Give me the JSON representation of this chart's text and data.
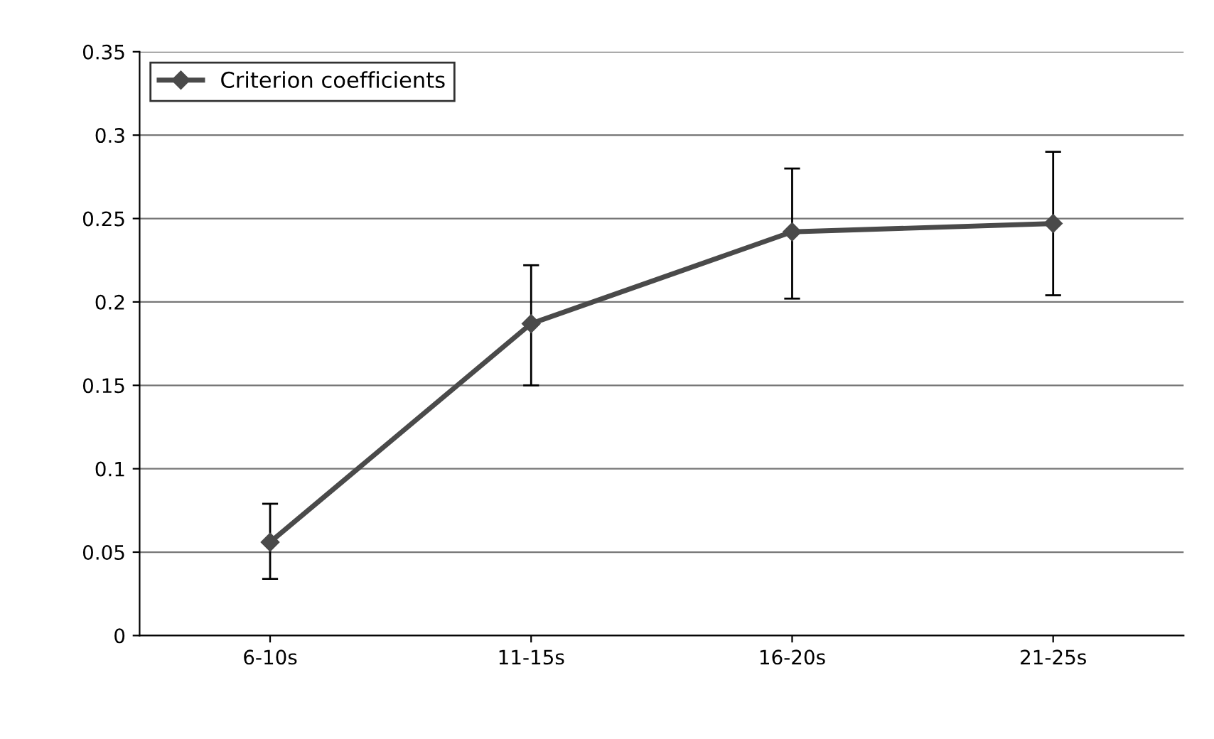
{
  "chart_data": {
    "type": "line",
    "categories": [
      "6-10s",
      "11-15s",
      "16-20s",
      "21-25s"
    ],
    "series": [
      {
        "name": "Criterion coefficients",
        "color": "#4a4a4a",
        "values": [
          0.056,
          0.187,
          0.242,
          0.247
        ],
        "errors": [
          [
            0.034,
            0.079
          ],
          [
            0.15,
            0.222
          ],
          [
            0.202,
            0.28
          ],
          [
            0.204,
            0.29
          ]
        ]
      }
    ],
    "ylim": [
      0,
      0.35
    ],
    "yticks": [
      0,
      0.05,
      0.1,
      0.15,
      0.2,
      0.25,
      0.3,
      0.35
    ],
    "grid": "y",
    "legend": "top left",
    "marker": "diamond",
    "line_style": "solid"
  }
}
